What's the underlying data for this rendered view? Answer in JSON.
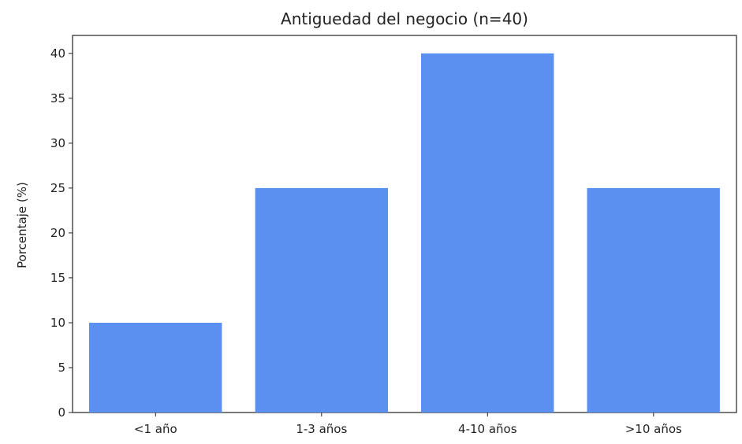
{
  "chart_data": {
    "type": "bar",
    "title": "Antiguedad del negocio (n=40)",
    "xlabel": "",
    "ylabel": "Porcentaje (%)",
    "categories": [
      "<1 año",
      "1-3 años",
      "4-10 años",
      ">10 años"
    ],
    "values": [
      10,
      25,
      40,
      25
    ],
    "ylim": [
      0,
      42
    ],
    "yticks": [
      0,
      5,
      10,
      15,
      20,
      25,
      30,
      35,
      40
    ],
    "bar_color": "#5b8ff0",
    "grid": false,
    "legend": "none"
  }
}
